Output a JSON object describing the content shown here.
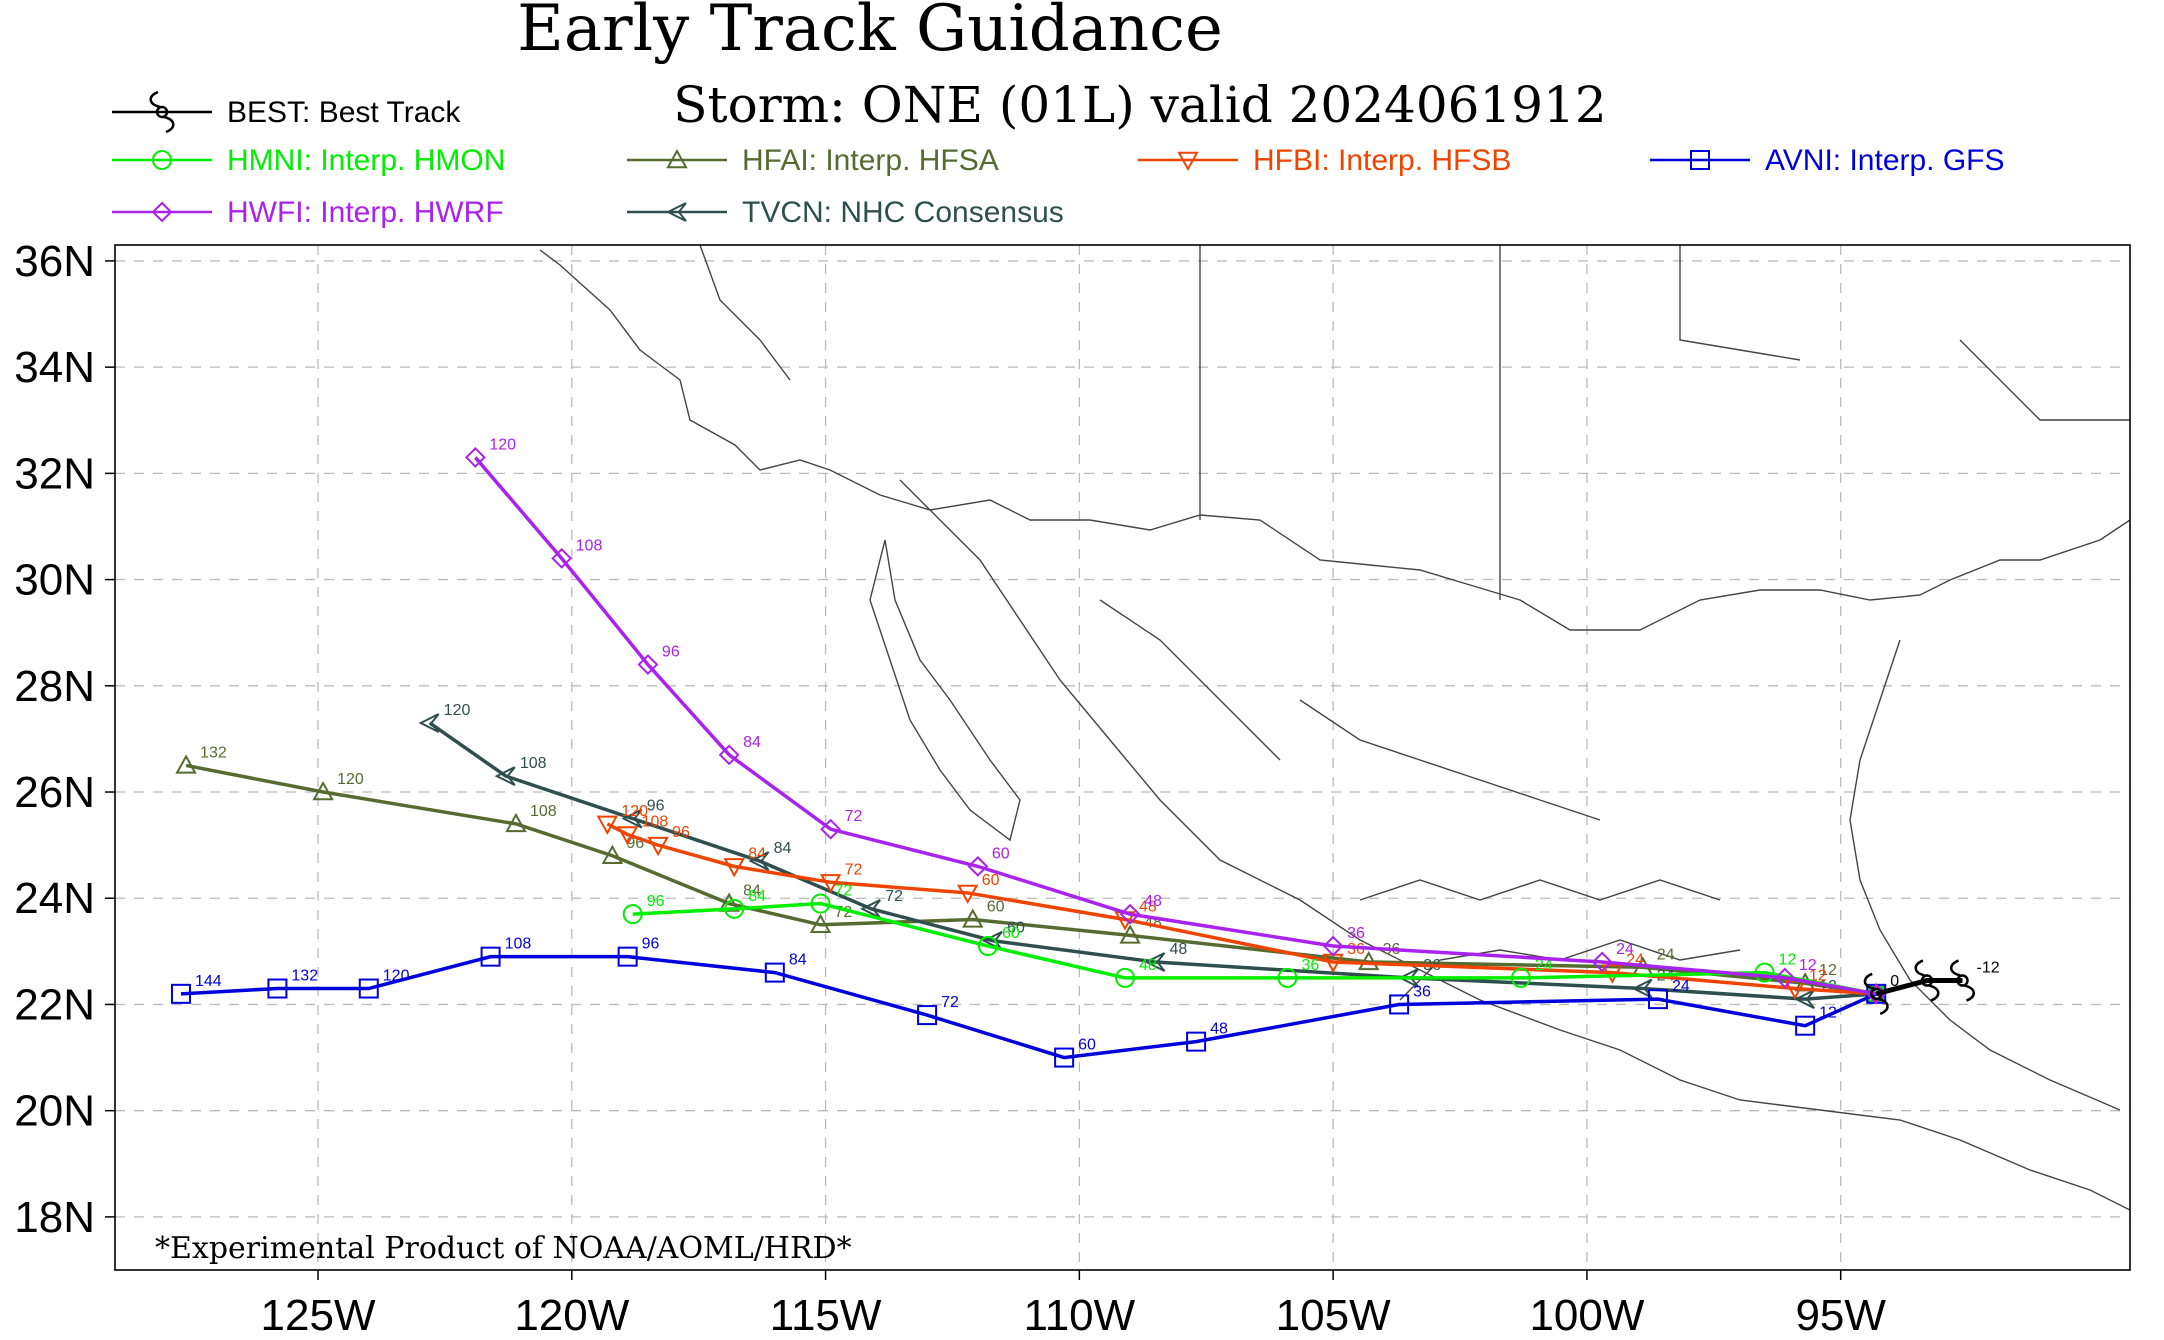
{
  "chart_data": {
    "type": "map-track",
    "title": "Early Track Guidance",
    "subtitle": "Storm: ONE (01L) valid 2024061912",
    "footer": "*Experimental Product of NOAA/AOML/HRD*",
    "lon_range": [
      -129,
      -89.3
    ],
    "lat_range": [
      17,
      36.3
    ],
    "x_ticks": [
      {
        "value": -125,
        "label": "125W"
      },
      {
        "value": -120,
        "label": "120W"
      },
      {
        "value": -115,
        "label": "115W"
      },
      {
        "value": -110,
        "label": "110W"
      },
      {
        "value": -105,
        "label": "105W"
      },
      {
        "value": -100,
        "label": "100W"
      },
      {
        "value": -95,
        "label": "95W"
      }
    ],
    "y_ticks": [
      {
        "value": 36,
        "label": "36N"
      },
      {
        "value": 34,
        "label": "34N"
      },
      {
        "value": 32,
        "label": "32N"
      },
      {
        "value": 30,
        "label": "30N"
      },
      {
        "value": 28,
        "label": "28N"
      },
      {
        "value": 26,
        "label": "26N"
      },
      {
        "value": 24,
        "label": "24N"
      },
      {
        "value": 22,
        "label": "22N"
      },
      {
        "value": 20,
        "label": "20N"
      },
      {
        "value": 18,
        "label": "18N"
      }
    ],
    "grid": true,
    "series": [
      {
        "id": "best",
        "name": "BEST: Best Track",
        "color": "#000000",
        "marker": "hurricane",
        "points": [
          {
            "lon": -92.6,
            "lat": 22.45,
            "label": "-12"
          },
          {
            "lon": -93.3,
            "lat": 22.45,
            "label": ""
          },
          {
            "lon": -94.3,
            "lat": 22.2,
            "label": "0"
          }
        ]
      },
      {
        "id": "hmni",
        "name": "HMNI: Interp. HMON",
        "color": "#00ee00",
        "marker": "circle",
        "points": [
          {
            "lon": -94.3,
            "lat": 22.2,
            "label": ""
          },
          {
            "lon": -96.5,
            "lat": 22.6,
            "label": "12"
          },
          {
            "lon": -101.3,
            "lat": 22.5,
            "label": "24"
          },
          {
            "lon": -105.9,
            "lat": 22.5,
            "label": "36"
          },
          {
            "lon": -109.1,
            "lat": 22.5,
            "label": "48"
          },
          {
            "lon": -111.8,
            "lat": 23.1,
            "label": "60"
          },
          {
            "lon": -115.1,
            "lat": 23.9,
            "label": "72"
          },
          {
            "lon": -116.8,
            "lat": 23.8,
            "label": "84"
          },
          {
            "lon": -118.8,
            "lat": 23.7,
            "label": "96"
          }
        ]
      },
      {
        "id": "hfai",
        "name": "HFAI: Interp. HFSA",
        "color": "#556b2f",
        "marker": "triangle",
        "points": [
          {
            "lon": -94.3,
            "lat": 22.2,
            "label": ""
          },
          {
            "lon": -95.7,
            "lat": 22.4,
            "label": "12"
          },
          {
            "lon": -98.9,
            "lat": 22.7,
            "label": "24"
          },
          {
            "lon": -104.3,
            "lat": 22.8,
            "label": "36"
          },
          {
            "lon": -109.0,
            "lat": 23.3,
            "label": "48"
          },
          {
            "lon": -112.1,
            "lat": 23.6,
            "label": "60"
          },
          {
            "lon": -115.1,
            "lat": 23.5,
            "label": "72"
          },
          {
            "lon": -116.9,
            "lat": 23.9,
            "label": "84"
          },
          {
            "lon": -119.2,
            "lat": 24.8,
            "label": "96"
          },
          {
            "lon": -121.1,
            "lat": 25.4,
            "label": "108"
          },
          {
            "lon": -124.9,
            "lat": 26.0,
            "label": "120"
          },
          {
            "lon": -127.6,
            "lat": 26.5,
            "label": "132"
          }
        ]
      },
      {
        "id": "hfbi",
        "name": "HFBI: Interp. HFSB",
        "color": "#ee4400",
        "marker": "triangle-down",
        "points": [
          {
            "lon": -94.3,
            "lat": 22.2,
            "label": ""
          },
          {
            "lon": -95.9,
            "lat": 22.3,
            "label": "12"
          },
          {
            "lon": -99.5,
            "lat": 22.6,
            "label": "24"
          },
          {
            "lon": -105.0,
            "lat": 22.8,
            "label": "36"
          },
          {
            "lon": -109.1,
            "lat": 23.6,
            "label": "48"
          },
          {
            "lon": -112.2,
            "lat": 24.1,
            "label": "60"
          },
          {
            "lon": -114.9,
            "lat": 24.3,
            "label": "72"
          },
          {
            "lon": -116.8,
            "lat": 24.6,
            "label": "84"
          },
          {
            "lon": -118.3,
            "lat": 25.0,
            "label": "96"
          },
          {
            "lon": -118.9,
            "lat": 25.2,
            "label": "108"
          },
          {
            "lon": -119.3,
            "lat": 25.4,
            "label": "120"
          }
        ]
      },
      {
        "id": "avni",
        "name": "AVNI: Interp. GFS",
        "color": "#0000dd",
        "marker": "square",
        "points": [
          {
            "lon": -94.3,
            "lat": 22.2,
            "label": ""
          },
          {
            "lon": -95.7,
            "lat": 21.6,
            "label": "12"
          },
          {
            "lon": -98.6,
            "lat": 22.1,
            "label": "24"
          },
          {
            "lon": -103.7,
            "lat": 22.0,
            "label": "36"
          },
          {
            "lon": -107.7,
            "lat": 21.3,
            "label": "48"
          },
          {
            "lon": -110.3,
            "lat": 21.0,
            "label": "60"
          },
          {
            "lon": -113.0,
            "lat": 21.8,
            "label": "72"
          },
          {
            "lon": -116.0,
            "lat": 22.6,
            "label": "84"
          },
          {
            "lon": -118.9,
            "lat": 22.9,
            "label": "96"
          },
          {
            "lon": -121.6,
            "lat": 22.9,
            "label": "108"
          },
          {
            "lon": -124.0,
            "lat": 22.3,
            "label": "120"
          },
          {
            "lon": -125.8,
            "lat": 22.3,
            "label": "132"
          },
          {
            "lon": -127.7,
            "lat": 22.2,
            "label": "144"
          }
        ]
      },
      {
        "id": "hwfi",
        "name": "HWFI: Interp. HWRF",
        "color": "#aa22ee",
        "marker": "diamond",
        "points": [
          {
            "lon": -94.3,
            "lat": 22.2,
            "label": ""
          },
          {
            "lon": -96.1,
            "lat": 22.5,
            "label": "12"
          },
          {
            "lon": -99.7,
            "lat": 22.8,
            "label": "24"
          },
          {
            "lon": -105.0,
            "lat": 23.1,
            "label": "36"
          },
          {
            "lon": -109.0,
            "lat": 23.7,
            "label": "48"
          },
          {
            "lon": -112.0,
            "lat": 24.6,
            "label": "60"
          },
          {
            "lon": -114.9,
            "lat": 25.3,
            "label": "72"
          },
          {
            "lon": -116.9,
            "lat": 26.7,
            "label": "84"
          },
          {
            "lon": -118.5,
            "lat": 28.4,
            "label": "96"
          },
          {
            "lon": -120.2,
            "lat": 30.4,
            "label": "108"
          },
          {
            "lon": -121.9,
            "lat": 32.3,
            "label": "120"
          }
        ]
      },
      {
        "id": "tvcn",
        "name": "TVCN: NHC Consensus",
        "color": "#2f4f4f",
        "marker": "arrowhead",
        "points": [
          {
            "lon": -94.3,
            "lat": 22.2,
            "label": ""
          },
          {
            "lon": -95.7,
            "lat": 22.1,
            "label": "12"
          },
          {
            "lon": -98.9,
            "lat": 22.3,
            "label": "24"
          },
          {
            "lon": -103.5,
            "lat": 22.5,
            "label": "36"
          },
          {
            "lon": -108.5,
            "lat": 22.8,
            "label": "48"
          },
          {
            "lon": -111.7,
            "lat": 23.2,
            "label": "60"
          },
          {
            "lon": -114.1,
            "lat": 23.8,
            "label": "72"
          },
          {
            "lon": -116.3,
            "lat": 24.7,
            "label": "84"
          },
          {
            "lon": -118.8,
            "lat": 25.5,
            "label": "96"
          },
          {
            "lon": -121.3,
            "lat": 26.3,
            "label": "108"
          },
          {
            "lon": -122.8,
            "lat": 27.3,
            "label": "120"
          }
        ]
      }
    ]
  }
}
